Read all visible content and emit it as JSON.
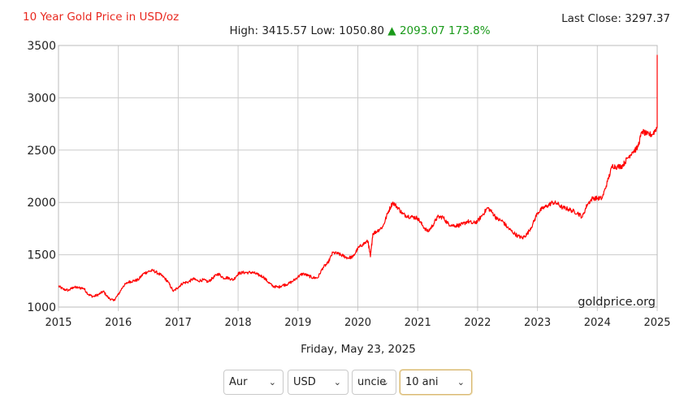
{
  "header": {
    "title": "10 Year Gold Price in USD/oz",
    "last_close": "Last Close: 3297.37",
    "high": "High: 3415.57",
    "low": "Low: 1050.80",
    "change_icon": "up-triangle-icon",
    "change": "▲ 2093.07 173.8%"
  },
  "colors": {
    "title": "#e8271e",
    "line": "#ff0000",
    "change": "#1a9a1a",
    "grid": "#cccccc"
  },
  "watermark": "goldprice.org",
  "date_label": "Friday, May 23, 2025",
  "controls": {
    "metal": "Aur",
    "currency": "USD",
    "unit": "uncie",
    "range": "10 ani"
  },
  "chart_data": {
    "type": "line",
    "title": "10 Year Gold Price in USD/oz",
    "xlabel": "",
    "ylabel": "",
    "xlim": [
      2015,
      2025.4
    ],
    "ylim": [
      1000,
      3500
    ],
    "x_ticks": [
      "2015",
      "2016",
      "2017",
      "2018",
      "2019",
      "2020",
      "2021",
      "2022",
      "2023",
      "2024",
      "2025"
    ],
    "y_ticks": [
      "1000",
      "1500",
      "2000",
      "2500",
      "3000",
      "3500"
    ],
    "grid": true,
    "series": [
      {
        "x": [
          2015.0,
          2015.08,
          2015.17,
          2015.25,
          2015.33,
          2015.42,
          2015.5,
          2015.58,
          2015.67,
          2015.75,
          2015.83,
          2015.92,
          2016.0,
          2016.08,
          2016.17,
          2016.25,
          2016.33,
          2016.42,
          2016.5,
          2016.58,
          2016.67,
          2016.75,
          2016.83,
          2016.92,
          2017.0,
          2017.08,
          2017.17,
          2017.25,
          2017.33,
          2017.42,
          2017.5,
          2017.58,
          2017.67,
          2017.75,
          2017.83,
          2017.92,
          2018.0,
          2018.08,
          2018.17,
          2018.25,
          2018.33,
          2018.42,
          2018.5,
          2018.58,
          2018.67,
          2018.75,
          2018.83,
          2018.92,
          2019.0,
          2019.08,
          2019.17,
          2019.25,
          2019.33,
          2019.42,
          2019.5,
          2019.58,
          2019.67,
          2019.75,
          2019.83,
          2019.92,
          2020.0,
          2020.08,
          2020.17,
          2020.21,
          2020.25,
          2020.33,
          2020.42,
          2020.5,
          2020.58,
          2020.67,
          2020.75,
          2020.83,
          2020.92,
          2021.0,
          2021.08,
          2021.17,
          2021.25,
          2021.33,
          2021.42,
          2021.5,
          2021.58,
          2021.67,
          2021.75,
          2021.83,
          2021.92,
          2022.0,
          2022.08,
          2022.17,
          2022.25,
          2022.33,
          2022.42,
          2022.5,
          2022.58,
          2022.67,
          2022.75,
          2022.83,
          2022.92,
          2023.0,
          2023.08,
          2023.17,
          2023.25,
          2023.33,
          2023.42,
          2023.5,
          2023.58,
          2023.67,
          2023.75,
          2023.83,
          2023.92,
          2024.0,
          2024.08,
          2024.17,
          2024.25,
          2024.33,
          2024.42,
          2024.5,
          2024.58,
          2024.67,
          2024.75,
          2024.83,
          2024.92,
          2025.0,
          2025.08,
          2025.17,
          2025.21,
          2025.25,
          2025.29,
          2025.33,
          2025.39
        ],
        "y": [
          1200,
          1170,
          1160,
          1190,
          1185,
          1180,
          1120,
          1100,
          1120,
          1150,
          1090,
          1060,
          1120,
          1200,
          1240,
          1250,
          1260,
          1320,
          1340,
          1350,
          1320,
          1290,
          1240,
          1150,
          1190,
          1230,
          1240,
          1270,
          1250,
          1260,
          1240,
          1280,
          1320,
          1280,
          1280,
          1260,
          1320,
          1330,
          1330,
          1330,
          1310,
          1290,
          1240,
          1200,
          1190,
          1210,
          1220,
          1250,
          1290,
          1320,
          1300,
          1280,
          1280,
          1380,
          1420,
          1520,
          1510,
          1490,
          1470,
          1480,
          1560,
          1600,
          1630,
          1480,
          1700,
          1730,
          1770,
          1900,
          2000,
          1950,
          1890,
          1870,
          1860,
          1850,
          1780,
          1720,
          1780,
          1860,
          1860,
          1800,
          1780,
          1780,
          1790,
          1820,
          1800,
          1820,
          1880,
          1950,
          1900,
          1840,
          1820,
          1760,
          1720,
          1680,
          1660,
          1700,
          1790,
          1900,
          1940,
          1970,
          2000,
          1990,
          1950,
          1940,
          1920,
          1900,
          1860,
          1980,
          2040,
          2040,
          2040,
          2200,
          2350,
          2340,
          2350,
          2420,
          2480,
          2520,
          2680,
          2650,
          2650,
          2720,
          2860,
          2960,
          3050,
          3320,
          3400,
          3300,
          3290
        ]
      }
    ]
  }
}
